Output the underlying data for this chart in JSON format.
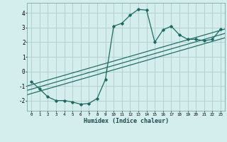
{
  "xlabel": "Humidex (Indice chaleur)",
  "bg_color": "#d4eded",
  "grid_color": "#b0cccc",
  "line_color": "#1a6b60",
  "xlim": [
    -0.5,
    23.5
  ],
  "ylim": [
    -2.7,
    4.7
  ],
  "xticks": [
    0,
    1,
    2,
    3,
    4,
    5,
    6,
    7,
    8,
    9,
    10,
    11,
    12,
    13,
    14,
    15,
    16,
    17,
    18,
    19,
    20,
    21,
    22,
    23
  ],
  "yticks": [
    -2,
    -1,
    0,
    1,
    2,
    3,
    4
  ],
  "main_x": [
    0,
    1,
    2,
    3,
    4,
    5,
    6,
    7,
    8,
    9,
    10,
    11,
    12,
    13,
    14,
    15,
    16,
    17,
    18,
    19,
    20,
    21,
    22,
    23
  ],
  "main_y": [
    -0.7,
    -1.2,
    -1.75,
    -2.0,
    -2.0,
    -2.1,
    -2.25,
    -2.2,
    -1.85,
    -0.55,
    3.1,
    3.3,
    3.85,
    4.25,
    4.2,
    2.0,
    2.85,
    3.1,
    2.5,
    2.2,
    2.2,
    2.1,
    2.2,
    2.9
  ],
  "line2_x": [
    -0.5,
    23.5
  ],
  "line2_y": [
    -1.6,
    2.3
  ],
  "line3_x": [
    -0.5,
    23.5
  ],
  "line3_y": [
    -1.3,
    2.6
  ],
  "line4_x": [
    -0.5,
    23.5
  ],
  "line4_y": [
    -1.0,
    2.9
  ]
}
